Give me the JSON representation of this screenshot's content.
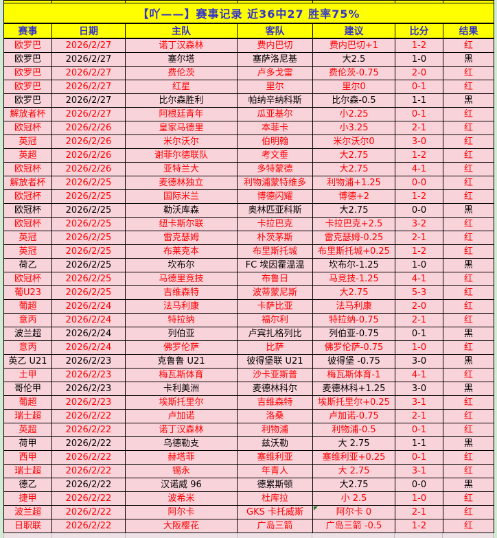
{
  "title": "【吖——】赛事记录 近36中27 胜率75%",
  "colors": {
    "header_bg": "#FFFF00",
    "header_text": "#3232CC",
    "row_bg": "#F9D3DA",
    "win_text": "#FF0000",
    "loss_text": "#000000",
    "frame_bg": "#D3EBD2",
    "grid_line": "#000000",
    "comment_marker": "#1F7A1F"
  },
  "table": {
    "columns": [
      {
        "key": "league",
        "label": "赛事"
      },
      {
        "key": "date",
        "label": "日期"
      },
      {
        "key": "home",
        "label": "主队"
      },
      {
        "key": "away",
        "label": "客队"
      },
      {
        "key": "tip",
        "label": "建议"
      },
      {
        "key": "score",
        "label": "比分"
      },
      {
        "key": "result",
        "label": "结果"
      }
    ],
    "win_value": "红",
    "loss_value": "黑",
    "comment_marker": {
      "row": 34,
      "field": "tip"
    },
    "rows": [
      {
        "league": "欧罗巴",
        "date": "2026/2/27",
        "home": "诺丁汉森林",
        "away": "费内巴切",
        "tip": "费内巴切+1",
        "score": "1-2",
        "result": "红"
      },
      {
        "league": "欧罗巴",
        "date": "2026/2/27",
        "home": "塞尔塔",
        "away": "塞萨洛尼基",
        "tip": "大2.5",
        "score": "1-0",
        "result": "黑"
      },
      {
        "league": "欧罗巴",
        "date": "2026/2/27",
        "home": "费伦茨",
        "away": "卢多戈雷",
        "tip": "费伦茨-0.75",
        "score": "2-0",
        "result": "红"
      },
      {
        "league": "欧罗巴",
        "date": "2026/2/27",
        "home": "红星",
        "away": "里尔",
        "tip": "里尔0",
        "score": "0-1",
        "result": "红"
      },
      {
        "league": "欧罗巴",
        "date": "2026/2/27",
        "home": "比尔森胜利",
        "away": "帕纳辛纳科斯",
        "tip": "比尔森-0.5",
        "score": "1-1",
        "result": "黑"
      },
      {
        "league": "解放者杯",
        "date": "2026/2/27",
        "home": "阿根廷青年",
        "away": "瓜亚基尔",
        "tip": "小2.25",
        "score": "0-1",
        "result": "红"
      },
      {
        "league": "欧冠杯",
        "date": "2026/2/26",
        "home": "皇家马德里",
        "away": "本菲卡",
        "tip": "小3.25",
        "score": "2-1",
        "result": "红"
      },
      {
        "league": "英冠",
        "date": "2026/2/26",
        "home": "米尔沃尔",
        "away": "伯明翰",
        "tip": "米尔沃尔0",
        "score": "3-0",
        "result": "红"
      },
      {
        "league": "英超",
        "date": "2026/2/26",
        "home": "谢菲尔德联队",
        "away": "考文垂",
        "tip": "大2.75",
        "score": "1-2",
        "result": "红"
      },
      {
        "league": "欧冠杯",
        "date": "2026/2/26",
        "home": "亚特兰大",
        "away": "多特蒙德",
        "tip": "大2.75",
        "score": "4-1",
        "result": "红"
      },
      {
        "league": "解放者杯",
        "date": "2026/2/25",
        "home": "麦德林独立",
        "away": "利物浦蒙特维多",
        "tip": "利物浦+1.25",
        "score": "0-0",
        "result": "红"
      },
      {
        "league": "欧冠杯",
        "date": "2026/2/25",
        "home": "国际米兰",
        "away": "博德闪耀",
        "tip": "博德+2",
        "score": "1-2",
        "result": "红"
      },
      {
        "league": "欧冠杯",
        "date": "2026/2/25",
        "home": "勒沃库森",
        "away": "奥林匹亚科斯",
        "tip": "大2.75",
        "score": "0-0",
        "result": "黑"
      },
      {
        "league": "欧冠杯",
        "date": "2026/2/25",
        "home": "纽卡斯尔联",
        "away": "卡拉巴克",
        "tip": "卡拉巴克+2.5",
        "score": "3-2",
        "result": "红"
      },
      {
        "league": "英冠",
        "date": "2026/2/25",
        "home": "雷克瑟姆",
        "away": "朴茨茅斯",
        "tip": "雷克瑟姆-0.25",
        "score": "2-1",
        "result": "红"
      },
      {
        "league": "英冠",
        "date": "2026/2/25",
        "home": "布莱克本",
        "away": "布里斯托城",
        "tip": "布里斯托城+0.25",
        "score": "1-2",
        "result": "红"
      },
      {
        "league": "荷乙",
        "date": "2026/2/25",
        "home": "坎布尔",
        "away": "FC 埃因霍温温",
        "tip": "坎布尔-1.25",
        "score": "1-0",
        "result": "黑"
      },
      {
        "league": "欧冠杯",
        "date": "2026/2/25",
        "home": "马德里竞技",
        "away": "布鲁日",
        "tip": "马竞技-1.25",
        "score": "4-1",
        "result": "红"
      },
      {
        "league": "葡U23",
        "date": "2026/2/25",
        "home": "吉维森特",
        "away": "波蒂蒙尼斯",
        "tip": "大2.75",
        "score": "5-3",
        "result": "红"
      },
      {
        "league": "葡超",
        "date": "2026/2/24",
        "home": "法马利康",
        "away": "卡萨比亚",
        "tip": "法马利康",
        "score": "2-0",
        "result": "红"
      },
      {
        "league": "意丙",
        "date": "2026/2/24",
        "home": "特拉纳",
        "away": "福尔利",
        "tip": "特拉纳-0.75",
        "score": "2-1",
        "result": "红"
      },
      {
        "league": "波兰超",
        "date": "2026/2/24",
        "home": "列伯亚",
        "away": "卢宾扎格列比",
        "tip": "列伯亚-0.75",
        "score": "0-1",
        "result": "黑"
      },
      {
        "league": "意丙",
        "date": "2026/2/24",
        "home": "佛罗伦萨",
        "away": "比萨",
        "tip": "佛罗伦萨-0.75",
        "score": "1-0",
        "result": "红"
      },
      {
        "league": "英乙 U21",
        "date": "2026/2/23",
        "home": "克鲁鲁 U21",
        "away": "彼得堡联 U21",
        "tip": "彼得堡 -0.75",
        "score": "3-0",
        "result": "黑"
      },
      {
        "league": "土甲",
        "date": "2026/2/23",
        "home": "梅瓦斯体育",
        "away": "沙卡亚斯普",
        "tip": "梅瓦斯体育-1",
        "score": "4-1",
        "result": "红"
      },
      {
        "league": "哥伦甲",
        "date": "2026/2/23",
        "home": "卡利美洲",
        "away": "麦德林科尔",
        "tip": "麦德林科+1.25",
        "score": "3-0",
        "result": "黑"
      },
      {
        "league": "葡超",
        "date": "2026/2/23",
        "home": "埃斯托里尔",
        "away": "吉维森特",
        "tip": "埃斯托里尔+0.25",
        "score": "3-1",
        "result": "红"
      },
      {
        "league": "瑞士超",
        "date": "2026/2/22",
        "home": "卢加诺",
        "away": "洛桑",
        "tip": "卢加诺-0.75",
        "score": "2-1",
        "result": "红"
      },
      {
        "league": "英超",
        "date": "2026/2/22",
        "home": "诺丁汉森林",
        "away": "利物浦",
        "tip": "利物浦-0.5",
        "score": "0-1",
        "result": "红"
      },
      {
        "league": "荷甲",
        "date": "2026/2/22",
        "home": "乌德勒支",
        "away": "兹沃勒",
        "tip": "大 2.75",
        "score": "1-1",
        "result": "黑"
      },
      {
        "league": "西甲",
        "date": "2026/2/22",
        "home": "赫塔菲",
        "away": "塞维利亚",
        "tip": "塞维利亚+0.25",
        "score": "0-1",
        "result": "红"
      },
      {
        "league": "瑞士超",
        "date": "2026/2/22",
        "home": "锡永",
        "away": "年青人",
        "tip": "大 2.75",
        "score": "3-1",
        "result": "红"
      },
      {
        "league": "德乙",
        "date": "2026/2/22",
        "home": "汉诺威 96",
        "away": "德累斯顿",
        "tip": "大2.75",
        "score": "0-0",
        "result": "黑"
      },
      {
        "league": "捷甲",
        "date": "2026/2/22",
        "home": "波希米",
        "away": "杜库拉",
        "tip": "小 2.5",
        "score": "1-0",
        "result": "红"
      },
      {
        "league": "波兰超",
        "date": "2026/2/22",
        "home": "阿尔卡",
        "away": "GKS 卡托威斯",
        "tip": "阿尔卡 0",
        "score": "2-1",
        "result": "红"
      },
      {
        "league": "日职联",
        "date": "2026/2/22",
        "home": "大阪樱花",
        "away": "广岛三箭",
        "tip": "广岛三箭 -0.5",
        "score": "1-2",
        "result": "红"
      }
    ]
  }
}
